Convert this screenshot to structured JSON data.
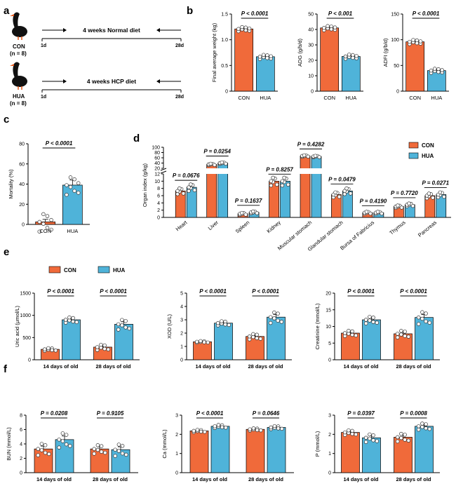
{
  "colors": {
    "con": "#f06a3a",
    "hua": "#4fb3d9",
    "point_fill": "#ffffff",
    "axis": "#000000"
  },
  "panel_a": {
    "letter": "a",
    "groups": [
      {
        "label": "CON",
        "n": "(n = 8)",
        "diet": "4 weeks Normal diet",
        "start": "1d",
        "end": "28d"
      },
      {
        "label": "HUA",
        "n": "(n = 8)",
        "diet": "4 weeks HCP diet",
        "start": "1d",
        "end": "28d"
      }
    ]
  },
  "panel_b": {
    "letter": "b"
  },
  "panel_c": {
    "letter": "c"
  },
  "panel_d": {
    "letter": "d"
  },
  "panel_e": {
    "letter": "e"
  },
  "panel_f": {
    "letter": "f"
  },
  "legend": {
    "con": "CON",
    "hua": "HUA"
  },
  "chart_data": [
    {
      "id": "b1",
      "type": "bar",
      "ylabel": "Final average weight (kg)",
      "ylim": [
        0,
        1.5
      ],
      "yticks": [
        0,
        0.5,
        1.0,
        1.5
      ],
      "ytick_labels": [
        "0",
        "0.5",
        "1.0",
        "1.5"
      ],
      "categories": [
        "CON",
        "HUA"
      ],
      "values": [
        1.21,
        0.67
      ],
      "errors": [
        0.02,
        0.04
      ],
      "pvalues": [
        "P < 0.0001"
      ]
    },
    {
      "id": "b2",
      "type": "bar",
      "ylabel": "ADG (g/b/d)",
      "ylim": [
        0,
        50
      ],
      "yticks": [
        0,
        10,
        20,
        30,
        40,
        50
      ],
      "ytick_labels": [
        "0",
        "10",
        "20",
        "30",
        "40",
        "50"
      ],
      "categories": [
        "CON",
        "HUA"
      ],
      "values": [
        41,
        22.5
      ],
      "errors": [
        0.8,
        1.2
      ],
      "pvalues": [
        "P < 0.001"
      ]
    },
    {
      "id": "b3",
      "type": "bar",
      "ylabel": "ADFI (g/b/d)",
      "ylim": [
        0,
        150
      ],
      "yticks": [
        0,
        50,
        100,
        150
      ],
      "ytick_labels": [
        "0",
        "50",
        "100",
        "150"
      ],
      "categories": [
        "CON",
        "HUA"
      ],
      "values": [
        96,
        40
      ],
      "errors": [
        2,
        3
      ],
      "pvalues": [
        "P < 0.0001"
      ]
    },
    {
      "id": "c",
      "type": "bar",
      "ylabel": "Mortality (%)",
      "ylim": [
        0,
        80
      ],
      "yticks": [
        0,
        20,
        40,
        60,
        80
      ],
      "ytick_labels": [
        "0",
        "20",
        "40",
        "60",
        "80"
      ],
      "categories": [
        "CON",
        "HUA"
      ],
      "values": [
        2.5,
        39
      ],
      "errors": [
        2.5,
        5
      ],
      "pvalues": [
        "P < 0.0001"
      ]
    },
    {
      "id": "d",
      "type": "bar",
      "ylabel": "Organ index (g/kg)",
      "ylim": [
        0,
        100
      ],
      "yticks": [
        0,
        2,
        4,
        6,
        8,
        10,
        12,
        20,
        40,
        60,
        80,
        100
      ],
      "ytick_labels": [
        "0",
        "2",
        "4",
        "6",
        "8",
        "10",
        "12",
        "20",
        "40",
        "60",
        "80",
        "100"
      ],
      "axis_break": "12-20",
      "categories": [
        "Heart",
        "Liver",
        "Spleen",
        "Kidney",
        "Muscular stomach",
        "Glandular stomach",
        "Bursa of Fabricius",
        "Thymus",
        "Pancreas"
      ],
      "series": [
        {
          "name": "CON",
          "values": [
            7.3,
            35,
            1.0,
            10.0,
            67,
            6.3,
            1.3,
            3.0,
            6.0
          ]
        },
        {
          "name": "HUA",
          "values": [
            8.3,
            40,
            1.4,
            10.0,
            65,
            7.3,
            1.3,
            3.5,
            6.3
          ]
        }
      ],
      "pvalues": [
        "P = 0.0676",
        "P = 0.0254",
        "P = 0.1637",
        "P = 0.8257",
        "P = 0.4282",
        "P = 0.0479",
        "P = 0.4190",
        "P = 0.7720",
        "P = 0.0271"
      ]
    },
    {
      "id": "e1",
      "type": "bar",
      "ylabel": "Uric acid (μmol/L)",
      "ylim": [
        0,
        1500
      ],
      "yticks": [
        0,
        500,
        1000,
        1500
      ],
      "ytick_labels": [
        "0",
        "500",
        "1000",
        "1500"
      ],
      "categories": [
        "14 days of old",
        "28 days of old"
      ],
      "series": [
        {
          "name": "CON",
          "values": [
            235,
            285
          ],
          "errors": [
            15,
            30
          ]
        },
        {
          "name": "HUA",
          "values": [
            900,
            800
          ],
          "errors": [
            30,
            55
          ]
        }
      ],
      "pvalues": [
        "P < 0.0001",
        "P < 0.0001"
      ]
    },
    {
      "id": "e2",
      "type": "bar",
      "ylabel": "XOD (U/L)",
      "ylim": [
        0,
        5
      ],
      "yticks": [
        0,
        1,
        2,
        3,
        4,
        5
      ],
      "ytick_labels": [
        "0",
        "1",
        "2",
        "3",
        "4",
        "5"
      ],
      "categories": [
        "14 days of old",
        "28 days of old"
      ],
      "series": [
        {
          "name": "CON",
          "values": [
            1.35,
            1.75
          ],
          "errors": [
            0.03,
            0.1
          ]
        },
        {
          "name": "HUA",
          "values": [
            2.75,
            3.2
          ],
          "errors": [
            0.08,
            0.2
          ]
        }
      ],
      "pvalues": [
        "P < 0.0001",
        "P < 0.0001"
      ]
    },
    {
      "id": "e3",
      "type": "bar",
      "ylabel": "Creatinine (mmol/L)",
      "ylim": [
        0,
        20
      ],
      "yticks": [
        0,
        5,
        10,
        15,
        20
      ],
      "ytick_labels": [
        "0",
        "5",
        "10",
        "15",
        "20"
      ],
      "categories": [
        "14 days of old",
        "28 days of old"
      ],
      "series": [
        {
          "name": "CON",
          "values": [
            8.0,
            7.8
          ],
          "errors": [
            0.4,
            0.5
          ]
        },
        {
          "name": "HUA",
          "values": [
            12.0,
            12.7
          ],
          "errors": [
            0.5,
            0.9
          ]
        }
      ],
      "pvalues": [
        "P < 0.0001",
        "P < 0.0001"
      ]
    },
    {
      "id": "f1",
      "type": "bar",
      "ylabel": "BUN (mmol/L)",
      "ylim": [
        0,
        8
      ],
      "yticks": [
        0,
        2,
        4,
        6,
        8
      ],
      "ytick_labels": [
        "0",
        "2",
        "4",
        "6",
        "8"
      ],
      "categories": [
        "14 days of old",
        "28 days of old"
      ],
      "series": [
        {
          "name": "CON",
          "values": [
            3.3,
            3.3
          ],
          "errors": [
            0.4,
            0.3
          ]
        },
        {
          "name": "HUA",
          "values": [
            4.6,
            3.2
          ],
          "errors": [
            0.5,
            0.4
          ]
        }
      ],
      "pvalues": [
        "P = 0.0208",
        "P = 0.9105"
      ]
    },
    {
      "id": "f2",
      "type": "bar",
      "ylabel": "Ca (mmol/L)",
      "ylim": [
        0,
        3
      ],
      "yticks": [
        0,
        1,
        2,
        3
      ],
      "ytick_labels": [
        "0",
        "1",
        "2",
        "3"
      ],
      "categories": [
        "14 days of old",
        "28 days of old"
      ],
      "series": [
        {
          "name": "CON",
          "values": [
            2.18,
            2.26
          ],
          "errors": [
            0.03,
            0.03
          ]
        },
        {
          "name": "HUA",
          "values": [
            2.42,
            2.36
          ],
          "errors": [
            0.04,
            0.04
          ]
        }
      ],
      "pvalues": [
        "P < 0.0001",
        "P = 0.0646"
      ]
    },
    {
      "id": "f3",
      "type": "bar",
      "ylabel": "P (mmol/L)",
      "ylim": [
        0,
        3
      ],
      "yticks": [
        0,
        1,
        2,
        3
      ],
      "ytick_labels": [
        "0",
        "1",
        "2",
        "3"
      ],
      "categories": [
        "14 days of old",
        "28 days of old"
      ],
      "series": [
        {
          "name": "CON",
          "values": [
            2.1,
            1.85
          ],
          "errors": [
            0.06,
            0.1
          ]
        },
        {
          "name": "HUA",
          "values": [
            1.82,
            2.42
          ],
          "errors": [
            0.1,
            0.08
          ]
        }
      ],
      "pvalues": [
        "P = 0.0397",
        "P = 0.0008"
      ]
    }
  ]
}
